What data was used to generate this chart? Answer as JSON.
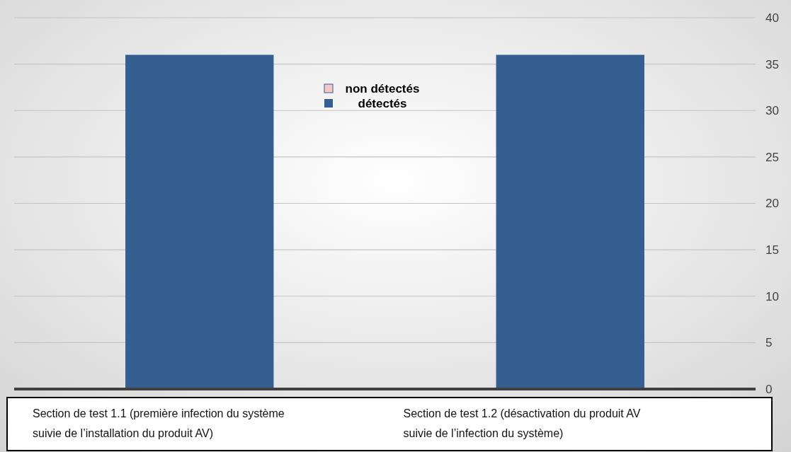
{
  "chart_data": {
    "type": "bar",
    "stacked": true,
    "categories": [
      "Section de test 1.1 (première infection du système suivie de l’installation du produit AV)",
      "Section de test 1.2 (désactivation du produit AV suivie de l’infection du système)"
    ],
    "series": [
      {
        "name": "détectés",
        "color": "#355f91",
        "values": [
          36,
          36
        ]
      },
      {
        "name": "non détectés",
        "color": "#f2c9c8",
        "values": [
          0,
          0
        ]
      }
    ],
    "ylim": [
      0,
      40
    ],
    "yticks": [
      0,
      5,
      10,
      15,
      20,
      25,
      30,
      35,
      40
    ],
    "grid": "y",
    "legend": "top"
  }
}
